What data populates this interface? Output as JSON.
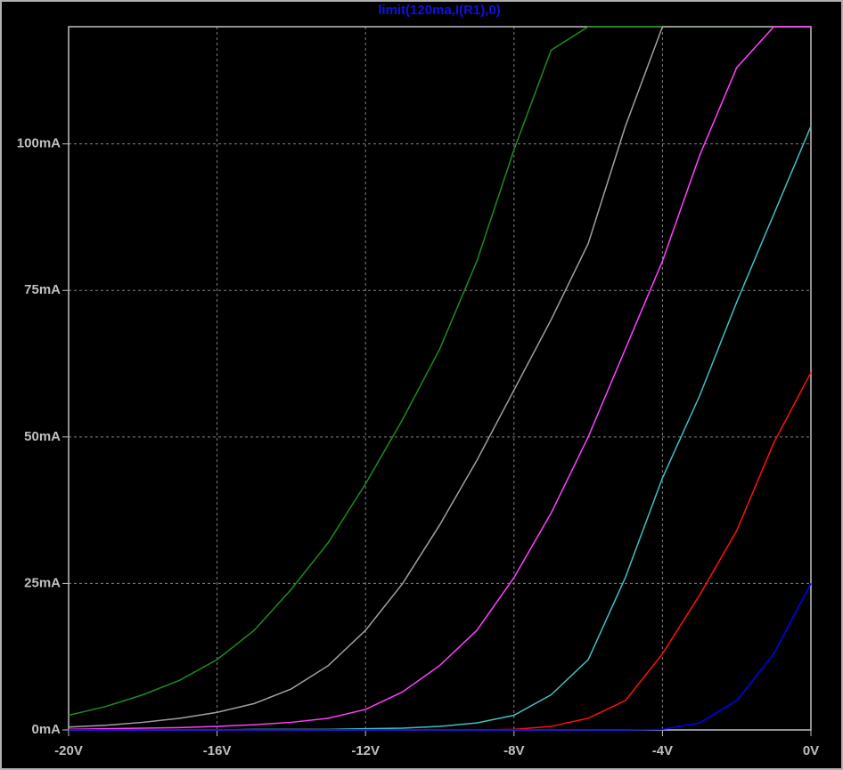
{
  "chart_data": {
    "type": "line",
    "title": "limit(120ma,I(R1),0)",
    "x": [
      -20,
      -19,
      -18,
      -17,
      -16,
      -15,
      -14,
      -13,
      -12,
      -11,
      -10,
      -9,
      -8,
      -7,
      -6,
      -5,
      -4,
      -3,
      -2,
      -1,
      0
    ],
    "series": [
      {
        "color": "#1e8c1e",
        "values": [
          2.5,
          4,
          6,
          8.5,
          12,
          17,
          24,
          32,
          42,
          53,
          65,
          80,
          99,
          116,
          120,
          120,
          120,
          120,
          120,
          120,
          120
        ]
      },
      {
        "color": "#a0a0a0",
        "values": [
          0.5,
          0.8,
          1.3,
          2,
          3,
          4.5,
          7,
          11,
          17,
          25,
          35,
          46,
          58,
          70,
          83,
          103,
          120,
          120,
          120,
          120,
          120
        ]
      },
      {
        "color": "#ff40ff",
        "values": [
          0.1,
          0.2,
          0.3,
          0.4,
          0.6,
          0.9,
          1.3,
          2,
          3.5,
          6.5,
          11,
          17,
          26,
          37,
          50,
          65,
          80,
          98,
          113,
          120,
          120
        ]
      },
      {
        "color": "#40c0c0",
        "values": [
          0,
          0,
          0,
          0,
          0,
          0.1,
          0.1,
          0.1,
          0.2,
          0.3,
          0.6,
          1.2,
          2.5,
          6,
          12,
          26,
          43,
          57,
          73,
          88,
          103
        ]
      },
      {
        "color": "#ff1010",
        "values": [
          0,
          0,
          0,
          0,
          0,
          0,
          0,
          0,
          0,
          0,
          0,
          0,
          0.1,
          0.6,
          2,
          5,
          13,
          23,
          34,
          49,
          61
        ]
      },
      {
        "color": "#0000ff",
        "values": [
          0,
          0,
          0,
          0,
          0,
          0,
          0,
          0,
          0,
          0,
          0,
          0,
          0,
          0,
          0,
          0,
          0.1,
          1.2,
          5,
          13,
          25
        ]
      }
    ],
    "xlim": [
      -20,
      0
    ],
    "ylim": [
      0,
      120
    ],
    "xticks": [
      {
        "value": -20,
        "label": "-20V"
      },
      {
        "value": -16,
        "label": "-16V"
      },
      {
        "value": -12,
        "label": "-12V"
      },
      {
        "value": -8,
        "label": "-8V"
      },
      {
        "value": -4,
        "label": "-4V"
      },
      {
        "value": 0,
        "label": "0V"
      }
    ],
    "yticks": [
      {
        "value": 0,
        "label": "0mA"
      },
      {
        "value": 25,
        "label": "25mA"
      },
      {
        "value": 50,
        "label": "50mA"
      },
      {
        "value": 75,
        "label": "75mA"
      },
      {
        "value": 100,
        "label": "100mA"
      }
    ],
    "grid": true
  }
}
